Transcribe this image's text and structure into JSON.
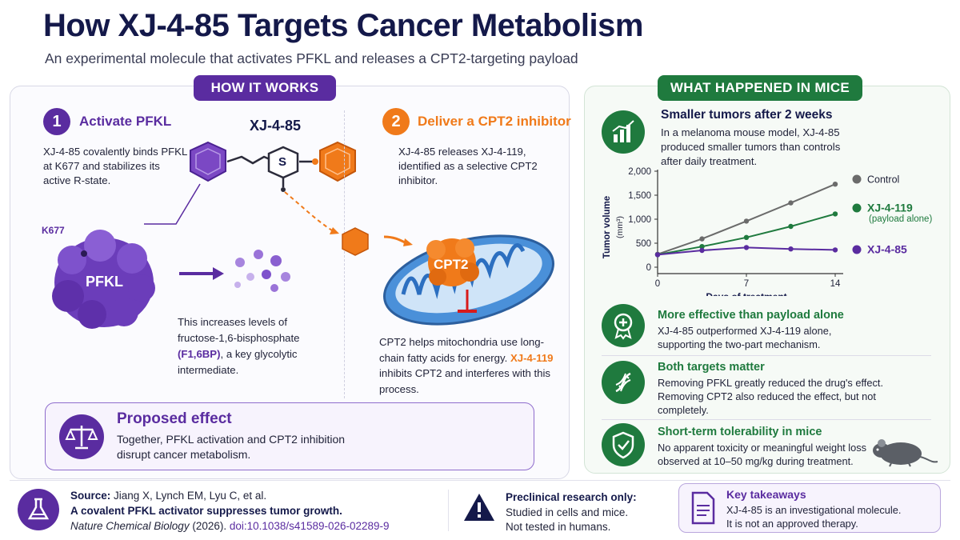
{
  "title": "How XJ-4-85 Targets Cancer Metabolism",
  "subtitle": "An experimental molecule that activates PFKL and releases a CPT2-targeting payload",
  "how_it_works": {
    "header": "HOW IT WORKS",
    "step1": {
      "number": "1",
      "title": "Activate PFKL",
      "text": "XJ-4-85 covalently binds PFKL at K677 and stabilizes its active R-state."
    },
    "molecule_label": "XJ-4-85",
    "molecule_s": "S",
    "k677_label": "K677",
    "pfkl_label": "PFKL",
    "increase_text_prefix": "This increases levels of fructose-1,6-bisphosphate",
    "increase_text_bold": "(F1,6BP)",
    "increase_text_suffix": ", a key glycolytic intermediate.",
    "step2": {
      "number": "2",
      "title": "Deliver a CPT2 inhibitor",
      "text": "XJ-4-85 releases XJ-4-119, identified as a selective CPT2 inhibitor."
    },
    "cpt2_label": "CPT2",
    "cpt2_text_prefix": "CPT2 helps mitochondria use long-chain fatty acids for energy.",
    "cpt2_text_highlight": "XJ-4-119",
    "cpt2_text_suffix": " inhibits CPT2 and interferes with this process.",
    "proposed": {
      "title": "Proposed effect",
      "text": "Together, PFKL activation and CPT2 inhibition disrupt cancer metabolism."
    }
  },
  "mice": {
    "header": "WHAT HAPPENED IN MICE",
    "tumor_title": "Smaller tumors after 2 weeks",
    "tumor_text": "In a melanoma mouse model, XJ-4-85 produced smaller tumors than controls after daily treatment.",
    "legend_payload_note": "(payload alone)",
    "items": [
      {
        "title": "More effective than payload alone",
        "text": "XJ-4-85 outperformed XJ-4-119 alone, supporting the two-part mechanism."
      },
      {
        "title": "Both targets matter",
        "text": "Removing PFKL greatly reduced the drug's effect. Removing CPT2 also reduced the effect, but not completely."
      },
      {
        "title": "Short-term tolerability in mice",
        "text": "No apparent toxicity or meaningful weight loss observed at 10–50 mg/kg during treatment."
      }
    ]
  },
  "chart_data": {
    "type": "line",
    "xlabel": "Days of treatment",
    "ylabel": "Tumor volume",
    "ylabel_unit": "(mm³)",
    "xlim": [
      0,
      14
    ],
    "ylim": [
      0,
      2000
    ],
    "xticks": [
      "0",
      "7",
      "14"
    ],
    "yticks": [
      "0",
      "500",
      "1,000",
      "1,500",
      "2,000"
    ],
    "grid": false,
    "legend_position": "right",
    "series": [
      {
        "name": "Control",
        "color": "#6b6b6b",
        "x": [
          0,
          3.5,
          7,
          10.5,
          14
        ],
        "y": [
          270,
          590,
          960,
          1340,
          1730
        ]
      },
      {
        "name": "XJ-4-119",
        "color": "#1f7a3e",
        "x": [
          0,
          3.5,
          7,
          10.5,
          14
        ],
        "y": [
          260,
          430,
          620,
          850,
          1110
        ]
      },
      {
        "name": "XJ-4-85",
        "color": "#5a2ca0",
        "x": [
          0,
          3.5,
          7,
          10.5,
          14
        ],
        "y": [
          260,
          350,
          410,
          380,
          360
        ]
      }
    ]
  },
  "footer": {
    "source_label": "Source:",
    "source_authors": "Jiang X, Lynch EM, Lyu C, et al.",
    "source_title": "A covalent PFKL activator suppresses tumor growth.",
    "source_journal": "Nature Chemical Biology",
    "source_year": " (2026). ",
    "source_doi": "doi:10.1038/s41589-026-02289-9",
    "preclinical_title": "Preclinical research only:",
    "preclinical_line1": "Studied in cells and mice.",
    "preclinical_line2": "Not tested in humans.",
    "takeaway_title": "Key takeaways",
    "takeaway_line1": "XJ-4-85 is an investigational molecule.",
    "takeaway_line2": "It is not an approved therapy."
  },
  "colors": {
    "purple": "#5a2ca0",
    "orange": "#f07a1a",
    "green": "#1f7a3e",
    "navy": "#14194a"
  }
}
